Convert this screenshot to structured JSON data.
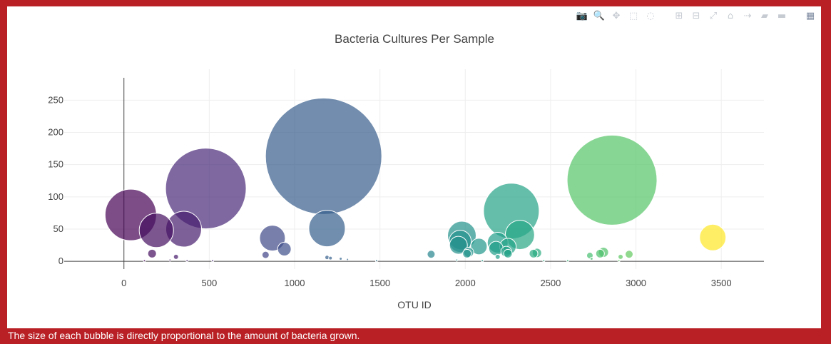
{
  "modebar": {
    "icons": [
      "camera-icon",
      "zoom-icon",
      "pan-icon",
      "box-select-icon",
      "lasso-icon",
      "zoom-in-icon",
      "zoom-out-icon",
      "autoscale-icon",
      "reset-axes-icon",
      "spike-lines-icon",
      "hover-closest-icon",
      "hover-compare-icon",
      "plotly-logo-icon"
    ],
    "glyphs": [
      "📷",
      "🔍",
      "✥",
      "⬚",
      "◌",
      "⊞",
      "⊟",
      "⤢",
      "⌂",
      "⇢",
      "▰",
      "▬",
      "▦"
    ]
  },
  "chart_data": {
    "type": "scatter",
    "mode": "markers",
    "title": "Bacteria Cultures Per Sample",
    "xlabel": "OTU ID",
    "ylabel": "",
    "xlim": [
      -350,
      3750
    ],
    "ylim": [
      -12,
      298
    ],
    "xticks": [
      0,
      500,
      1000,
      1500,
      2000,
      2500,
      3000,
      3500
    ],
    "yticks": [
      0,
      50,
      100,
      150,
      200,
      250
    ],
    "grid": true,
    "colorscale": "Viridis",
    "marker_size_ref": "sample value",
    "points": [
      {
        "x": 40,
        "y": 72
      },
      {
        "x": 190,
        "y": 48
      },
      {
        "x": 350,
        "y": 50
      },
      {
        "x": 480,
        "y": 113
      },
      {
        "x": 870,
        "y": 36
      },
      {
        "x": 940,
        "y": 19
      },
      {
        "x": 830,
        "y": 10
      },
      {
        "x": 165,
        "y": 12
      },
      {
        "x": 305,
        "y": 7
      },
      {
        "x": 1170,
        "y": 163
      },
      {
        "x": 1190,
        "y": 51
      },
      {
        "x": 1190,
        "y": 6
      },
      {
        "x": 1210,
        "y": 5
      },
      {
        "x": 1270,
        "y": 4
      },
      {
        "x": 1310,
        "y": 3
      },
      {
        "x": 1800,
        "y": 11
      },
      {
        "x": 1980,
        "y": 40
      },
      {
        "x": 1970,
        "y": 31
      },
      {
        "x": 1960,
        "y": 25
      },
      {
        "x": 2080,
        "y": 23
      },
      {
        "x": 2010,
        "y": 12
      },
      {
        "x": 2020,
        "y": 14
      },
      {
        "x": 2190,
        "y": 29
      },
      {
        "x": 2180,
        "y": 20
      },
      {
        "x": 2270,
        "y": 78
      },
      {
        "x": 2320,
        "y": 41
      },
      {
        "x": 2250,
        "y": 23
      },
      {
        "x": 2240,
        "y": 15
      },
      {
        "x": 2250,
        "y": 12
      },
      {
        "x": 2190,
        "y": 7
      },
      {
        "x": 2400,
        "y": 12
      },
      {
        "x": 2420,
        "y": 13
      },
      {
        "x": 2860,
        "y": 126
      },
      {
        "x": 2730,
        "y": 9
      },
      {
        "x": 2790,
        "y": 12
      },
      {
        "x": 2810,
        "y": 14
      },
      {
        "x": 2910,
        "y": 7
      },
      {
        "x": 2960,
        "y": 11
      },
      {
        "x": 3450,
        "y": 37
      },
      {
        "x": 120,
        "y": 1
      },
      {
        "x": 270,
        "y": 2
      },
      {
        "x": 370,
        "y": 1
      },
      {
        "x": 520,
        "y": 1
      },
      {
        "x": 1480,
        "y": 1
      },
      {
        "x": 1950,
        "y": 2
      },
      {
        "x": 2100,
        "y": 1
      },
      {
        "x": 2460,
        "y": 1
      },
      {
        "x": 2600,
        "y": 1
      },
      {
        "x": 2740,
        "y": 4
      },
      {
        "x": 2900,
        "y": 1
      }
    ]
  },
  "caption": "The size of each bubble is directly proportional to the amount of bacteria grown."
}
